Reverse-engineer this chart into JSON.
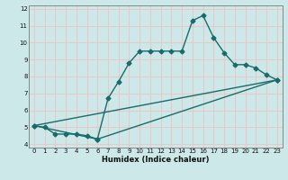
{
  "title": "",
  "xlabel": "Humidex (Indice chaleur)",
  "bg_color": "#cce8e8",
  "grid_color": "#e8c8c8",
  "line_color": "#1a6b6b",
  "spine_color": "#888888",
  "xlim": [
    -0.5,
    23.5
  ],
  "ylim": [
    3.8,
    12.2
  ],
  "yticks": [
    4,
    5,
    6,
    7,
    8,
    9,
    10,
    11,
    12
  ],
  "xticks": [
    0,
    1,
    2,
    3,
    4,
    5,
    6,
    7,
    8,
    9,
    10,
    11,
    12,
    13,
    14,
    15,
    16,
    17,
    18,
    19,
    20,
    21,
    22,
    23
  ],
  "series1_x": [
    0,
    1,
    2,
    3,
    4,
    5,
    6,
    7,
    8,
    9,
    10,
    11,
    12,
    13,
    14,
    15,
    16,
    17,
    18,
    19,
    20,
    21,
    22,
    23
  ],
  "series1_y": [
    5.1,
    5.0,
    4.6,
    4.6,
    4.6,
    4.5,
    4.3,
    6.7,
    7.7,
    8.8,
    9.5,
    9.5,
    9.5,
    9.5,
    9.5,
    11.3,
    11.6,
    10.3,
    9.4,
    8.7,
    8.7,
    8.5,
    8.1,
    7.8
  ],
  "series2_x": [
    0,
    6,
    23
  ],
  "series2_y": [
    5.1,
    4.3,
    7.8
  ],
  "series3_x": [
    0,
    23
  ],
  "series3_y": [
    5.1,
    7.8
  ],
  "marker_size": 2.5,
  "line_width": 1.0,
  "tick_fontsize": 5.0,
  "xlabel_fontsize": 6.0
}
